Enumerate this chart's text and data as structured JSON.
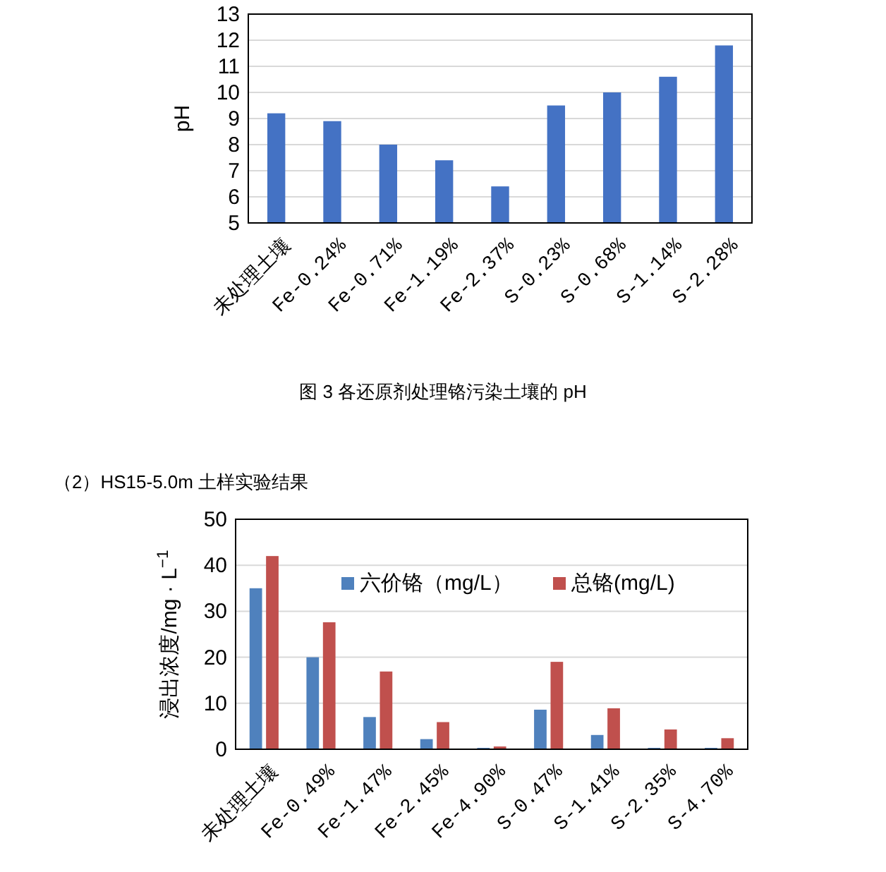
{
  "chart_data": [
    {
      "type": "bar",
      "ylabel": "pH",
      "categories": [
        "未处理土壤",
        "Fe-0.24%",
        "Fe-0.71%",
        "Fe-1.19%",
        "Fe-2.37%",
        "S-0.23%",
        "S-0.68%",
        "S-1.14%",
        "S-2.28%"
      ],
      "values": [
        9.2,
        8.9,
        8.0,
        7.4,
        6.4,
        9.5,
        10.0,
        10.6,
        11.8
      ],
      "color": "#4472c4",
      "ylim": [
        5,
        13
      ],
      "yticks": [
        5,
        6,
        7,
        8,
        9,
        10,
        11,
        12,
        13
      ],
      "grid": "y",
      "annotations": [
        "图 3 各还原剂处理铬污染土壤的 pH"
      ]
    },
    {
      "type": "bar",
      "title": "（2）HS15-5.0m 土样实验结果",
      "ylabel": "浸出浓度/mg · L$^{−1}$",
      "categories": [
        "未处理土壤",
        "Fe-0.49%",
        "Fe-1.47%",
        "Fe-2.45%",
        "Fe-4.90%",
        "S-0.47%",
        "S-1.41%",
        "S-2.35%",
        "S-4.70%"
      ],
      "series": [
        {
          "name": "六价铬（mg/L）",
          "color": "#4f81bd",
          "values": [
            35,
            20,
            7,
            2.2,
            0.3,
            8.6,
            3.1,
            0.3,
            0.3
          ]
        },
        {
          "name": "总铬(mg/L)",
          "color": "#c0504d",
          "values": [
            42,
            27.6,
            16.9,
            5.9,
            0.6,
            19,
            8.9,
            4.3,
            2.4
          ]
        }
      ],
      "ylim": [
        0,
        50
      ],
      "yticks": [
        0,
        10,
        20,
        30,
        40,
        50
      ],
      "grid": "y",
      "legend": "top right"
    }
  ]
}
